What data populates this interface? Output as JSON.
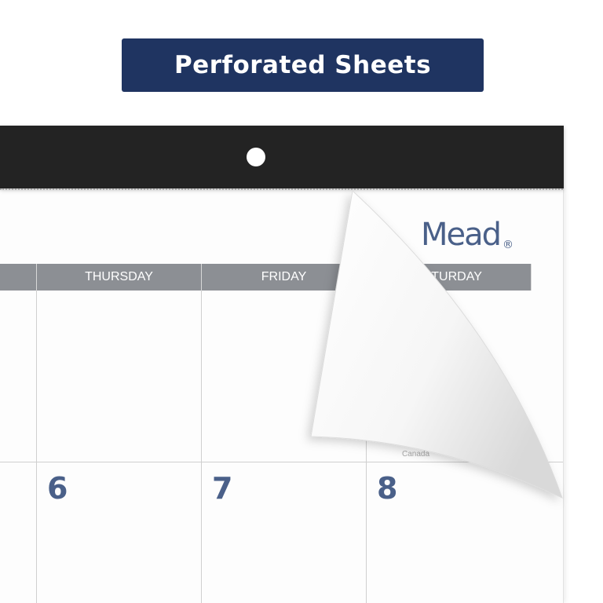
{
  "banner": {
    "title": "Perforated Sheets"
  },
  "brand": {
    "logo": "Mead",
    "registered": "®"
  },
  "calendar": {
    "day_headers": [
      "THURSDAY",
      "FRIDAY",
      "SATURDAY"
    ],
    "dates": [
      "6",
      "7",
      "8"
    ],
    "fine_print": "Canada"
  },
  "colors": {
    "banner": "#1f3461",
    "header_bar": "#232323",
    "day_header": "#8c8f94",
    "date_number": "#4a6089"
  }
}
